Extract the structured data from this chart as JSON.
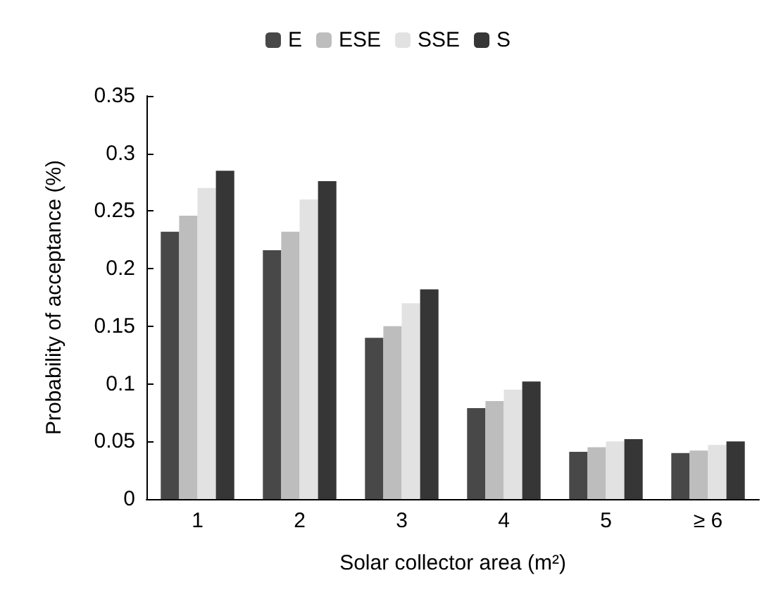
{
  "chart_data": {
    "type": "bar",
    "xlabel": "Solar collector area (m²)",
    "ylabel": "Probability of acceptance (%)",
    "categories": [
      "1",
      "2",
      "3",
      "4",
      "5",
      "≥ 6"
    ],
    "series": [
      {
        "name": "E",
        "color": "#484848",
        "values": [
          0.232,
          0.216,
          0.14,
          0.079,
          0.041,
          0.04
        ]
      },
      {
        "name": "ESE",
        "color": "#bdbdbd",
        "values": [
          0.246,
          0.232,
          0.15,
          0.085,
          0.045,
          0.042
        ]
      },
      {
        "name": "SSE",
        "color": "#e2e2e2",
        "values": [
          0.27,
          0.26,
          0.17,
          0.095,
          0.05,
          0.047
        ]
      },
      {
        "name": "S",
        "color": "#363636",
        "values": [
          0.285,
          0.276,
          0.182,
          0.102,
          0.052,
          0.05
        ]
      }
    ],
    "ylim": [
      0,
      0.35
    ],
    "yticks": [
      0,
      0.05,
      0.1,
      0.15,
      0.2,
      0.25,
      0.3,
      0.35
    ],
    "grid": false,
    "legend": "top"
  }
}
